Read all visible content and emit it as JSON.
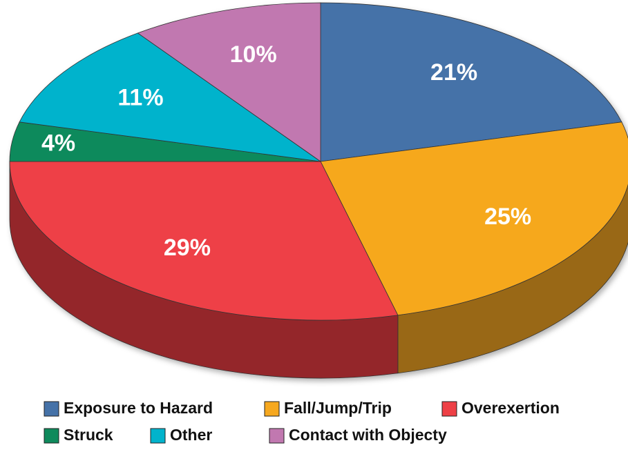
{
  "chart_data": {
    "type": "pie",
    "categories": [
      "Exposure to Hazard",
      "Fall/Jump/Trip",
      "Overexertion",
      "Struck",
      "Other",
      "Contact with Objecty"
    ],
    "values": [
      21,
      25,
      29,
      4,
      11,
      10
    ],
    "value_labels": [
      "21%",
      "25%",
      "29%",
      "4%",
      "11%",
      "10%"
    ],
    "colors": [
      "#4572a8",
      "#f6a81f",
      "#ee4046",
      "#0f8a5c",
      "#01b3cc",
      "#c178b0"
    ],
    "legend": "bottom"
  }
}
